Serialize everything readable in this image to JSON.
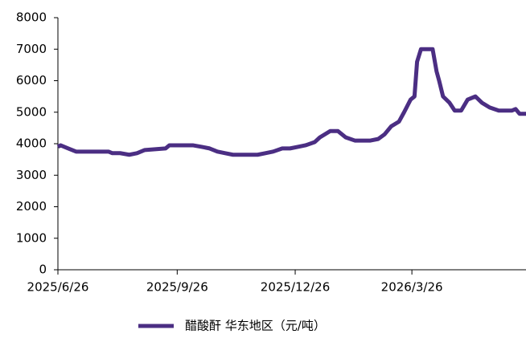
{
  "chart_data": {
    "type": "line",
    "x": [
      "2025/6/26",
      "2025/6/28",
      "2025/7/4",
      "2025/7/10",
      "2025/8/4",
      "2025/8/7",
      "2025/8/13",
      "2025/8/20",
      "2025/8/26",
      "2025/9/1",
      "2025/9/17",
      "2025/9/20",
      "2025/10/8",
      "2025/10/15",
      "2025/10/21",
      "2025/10/27",
      "2025/11/2",
      "2025/11/8",
      "2025/11/27",
      "2025/12/3",
      "2025/12/9",
      "2025/12/16",
      "2025/12/22",
      "2025/12/28",
      "2026/1/3",
      "2026/1/10",
      "2026/1/14",
      "2026/1/22",
      "2026/1/28",
      "2026/2/3",
      "2026/2/10",
      "2026/2/22",
      "2026/2/28",
      "2026/3/5",
      "2026/3/10",
      "2026/3/16",
      "2026/3/20",
      "2026/3/25",
      "2026/3/28",
      "2026/3/30",
      "2026/4/2",
      "2026/4/11",
      "2026/4/14",
      "2026/4/16",
      "2026/4/19",
      "2026/4/24",
      "2026/4/28",
      "2026/5/3",
      "2026/5/8",
      "2026/5/14",
      "2026/5/19",
      "2026/5/25",
      "2026/6/1",
      "2026/6/11",
      "2026/6/14",
      "2026/6/17",
      "2026/6/22"
    ],
    "series": [
      {
        "name": "醋酸酐 华东地区（元/吨）",
        "color": "#4b2e83",
        "values": [
          3900,
          3950,
          3850,
          3750,
          3750,
          3700,
          3700,
          3650,
          3700,
          3800,
          3850,
          3950,
          3950,
          3900,
          3850,
          3750,
          3700,
          3650,
          3650,
          3700,
          3750,
          3850,
          3850,
          3900,
          3950,
          4050,
          4200,
          4400,
          4400,
          4200,
          4100,
          4100,
          4150,
          4300,
          4550,
          4700,
          5000,
          5400,
          5500,
          6600,
          7000,
          7000,
          6300,
          6000,
          5500,
          5300,
          5050,
          5050,
          5400,
          5500,
          5300,
          5150,
          5050,
          5050,
          5100,
          4950,
          4950
        ]
      }
    ],
    "xlim": [
      "2025/6/26",
      "2026/6/22"
    ],
    "xticks": [
      "2025/6/26",
      "2025/9/26",
      "2025/12/26",
      "2026/3/26"
    ],
    "ylim": [
      0,
      8000
    ],
    "yticks": [
      0,
      1000,
      2000,
      3000,
      4000,
      5000,
      6000,
      7000,
      8000
    ]
  }
}
